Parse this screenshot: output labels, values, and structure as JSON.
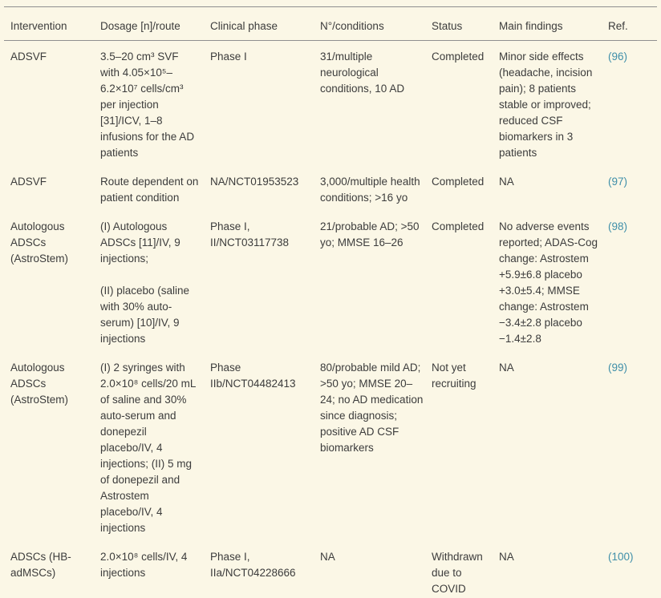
{
  "colors": {
    "background": "#fbf7e6",
    "text": "#3c3c3c",
    "citation_link": "#3f8fa9",
    "rule": "#8f8f8f"
  },
  "table": {
    "columns": {
      "intervention": "Intervention",
      "dosage": "Dosage [n]/route",
      "clinical_phase": "Clinical phase",
      "conditions": "N°/conditions",
      "status": "Status",
      "findings": "Main findings",
      "ref": "Ref."
    },
    "rows": [
      {
        "intervention": "ADSVF",
        "dosage": "3.5–20 cm³ SVF\nwith 4.05×10⁵–\n6.2×10⁷ cells/cm³\nper injection\n[31]/ICV, 1–8\ninfusions for the AD\npatients",
        "clinical_phase": "Phase I",
        "conditions": "31/multiple\nneurological\nconditions, 10 AD",
        "status": "Completed",
        "findings": "Minor side effects\n(headache, incision\npain); 8 patients\nstable or improved;\nreduced CSF\nbiomarkers in 3\npatients",
        "ref": "(96)"
      },
      {
        "intervention": "ADSVF",
        "dosage": "Route dependent on\npatient condition",
        "clinical_phase": "NA/NCT01953523",
        "conditions": "3,000/multiple health\nconditions; >16 yo",
        "status": "Completed",
        "findings": "NA",
        "ref": "(97)"
      },
      {
        "intervention": "Autologous\nADSCs\n(AstroStem)",
        "dosage": "(I) Autologous\nADSCs [11]/IV, 9\ninjections;\n\n(II) placebo (saline\nwith 30% auto-\nserum) [10]/IV, 9\ninjections",
        "clinical_phase": "Phase I,\nII/NCT03117738",
        "conditions": "21/probable AD; >50\nyo; MMSE 16–26",
        "status": "Completed",
        "findings": "No adverse events\nreported; ADAS-Cog\nchange: Astrostem\n+5.9±6.8 placebo\n+3.0±5.4; MMSE\nchange: Astrostem\n−3.4±2.8 placebo\n−1.4±2.8",
        "ref": "(98)"
      },
      {
        "intervention": "Autologous\nADSCs\n(AstroStem)",
        "dosage": "(I) 2 syringes with\n2.0×10⁸ cells/20 mL\nof saline and 30%\nauto-serum and\ndonepezil\nplacebo/IV, 4\ninjections; (II) 5 mg\nof donepezil and\nAstrostem\nplacebo/IV, 4\ninjections",
        "clinical_phase": "Phase\nIIb/NCT04482413",
        "conditions": "80/probable mild AD;\n>50 yo; MMSE 20–\n24; no AD medication\nsince diagnosis;\npositive AD CSF\nbiomarkers",
        "status": "Not yet\nrecruiting",
        "findings": "NA",
        "ref": "(99)"
      },
      {
        "intervention": "ADSCs (HB-\nadMSCs)",
        "dosage": "2.0×10⁸ cells/IV, 4\ninjections",
        "clinical_phase": "Phase I,\nIIa/NCT04228666",
        "conditions": "NA",
        "status": "Withdrawn\ndue to\nCOVID",
        "findings": "NA",
        "ref": "(100)"
      }
    ]
  }
}
